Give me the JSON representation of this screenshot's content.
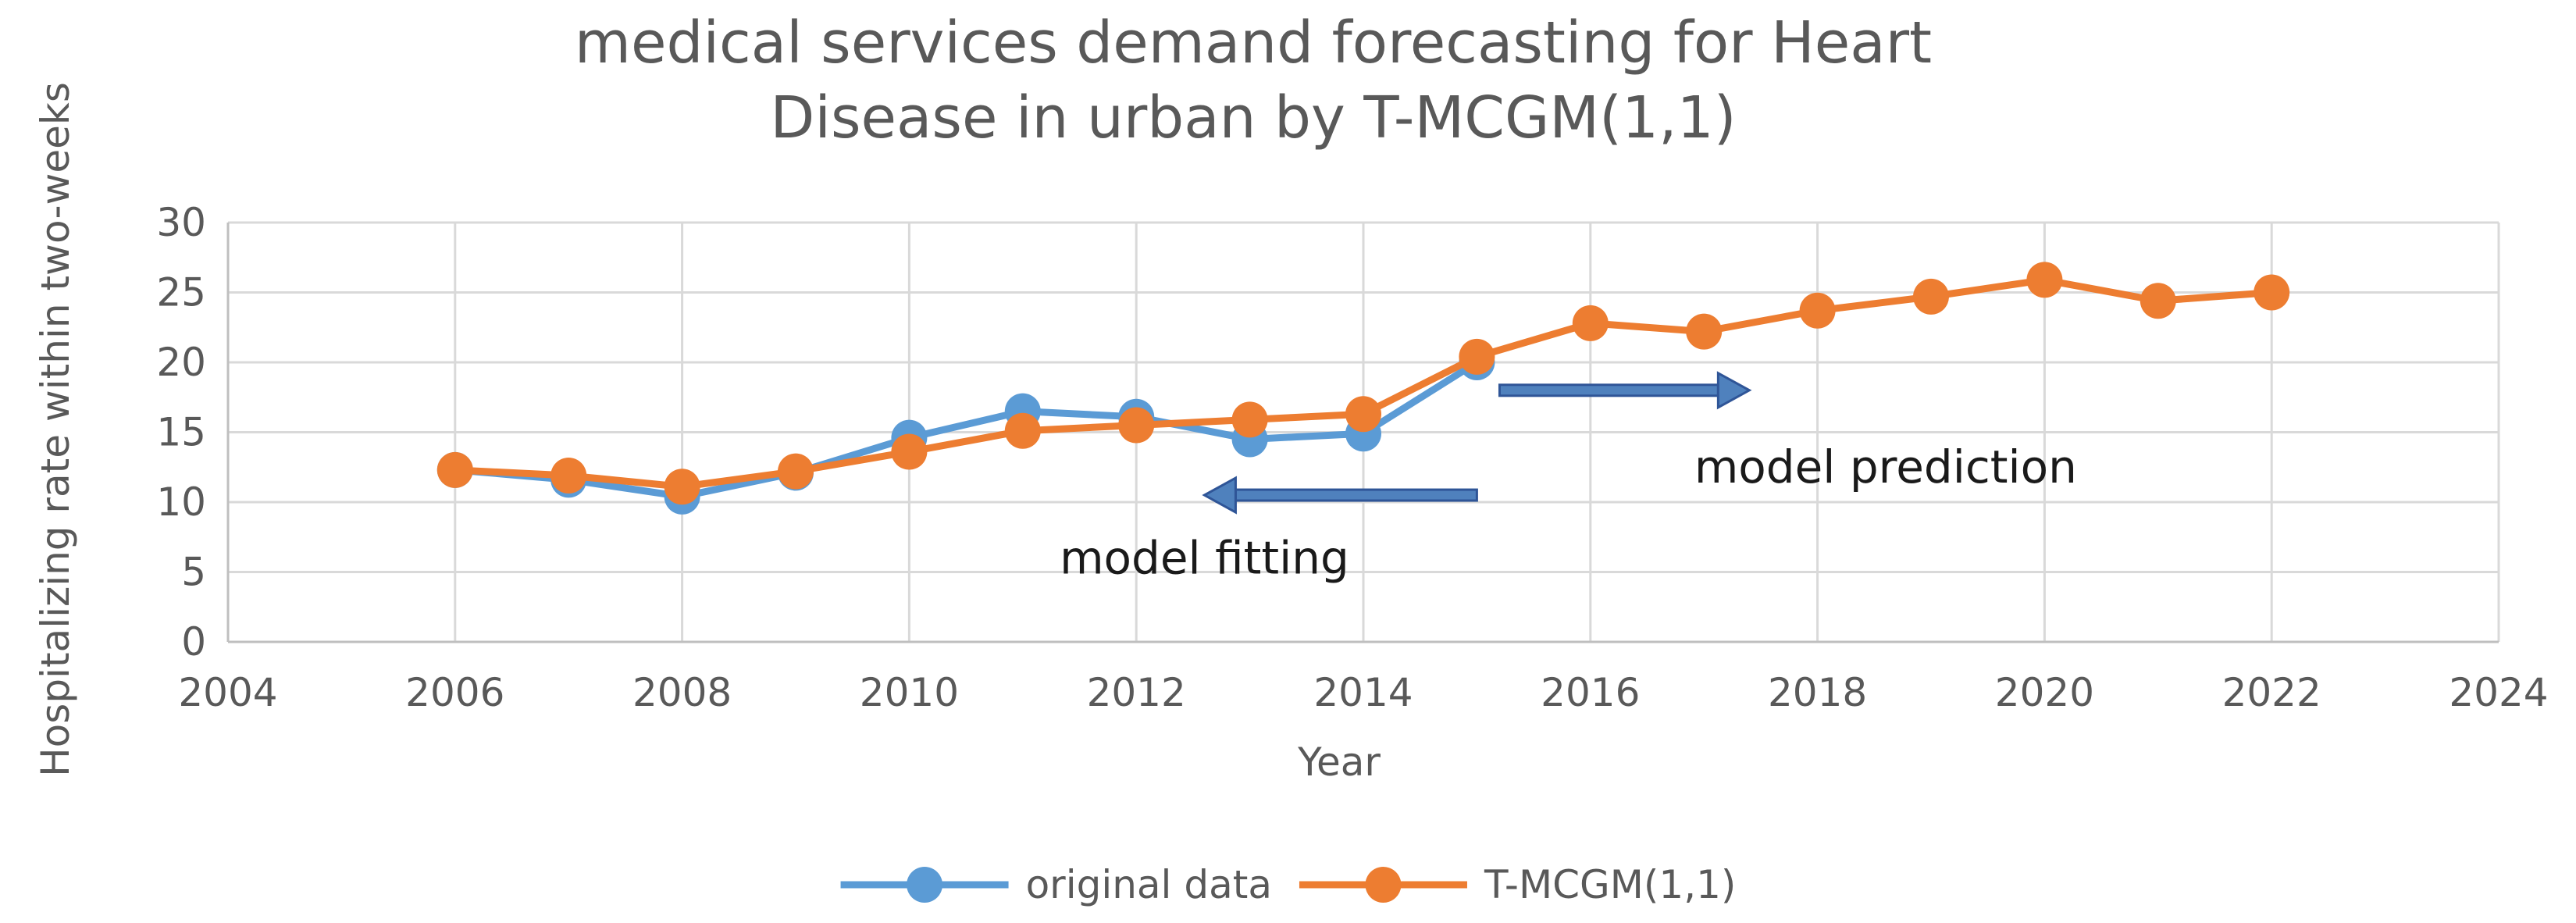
{
  "chart_data": {
    "type": "line",
    "title_lines": [
      "medical services demand forecasting for Heart",
      "Disease in urban by T-MCGM(1,1)"
    ],
    "xlabel": "Year",
    "ylabel": "Hospitalizing rate within two-weeks",
    "xlim": [
      2004,
      2024
    ],
    "ylim": [
      0,
      30
    ],
    "xticks": [
      2004,
      2006,
      2008,
      2010,
      2012,
      2014,
      2016,
      2018,
      2020,
      2022,
      2024
    ],
    "yticks": [
      0,
      5,
      10,
      15,
      20,
      25,
      30
    ],
    "grid": true,
    "legend_position": "bottom",
    "series": [
      {
        "name": "original data",
        "color": "#5b9bd5",
        "x": [
          2006,
          2007,
          2008,
          2009,
          2010,
          2011,
          2012,
          2013,
          2014,
          2015
        ],
        "values": [
          12.3,
          11.6,
          10.4,
          12.1,
          14.6,
          16.5,
          16.1,
          14.5,
          14.9,
          20.0
        ]
      },
      {
        "name": "T-MCGM(1,1)",
        "color": "#ed7d31",
        "x": [
          2006,
          2007,
          2008,
          2009,
          2010,
          2011,
          2012,
          2013,
          2014,
          2015,
          2016,
          2017,
          2018,
          2019,
          2020,
          2021,
          2022
        ],
        "values": [
          12.3,
          11.9,
          11.1,
          12.2,
          13.6,
          15.1,
          15.5,
          15.9,
          16.3,
          20.4,
          22.8,
          22.2,
          23.7,
          24.7,
          25.9,
          24.4,
          25.0
        ]
      }
    ],
    "annotations": [
      {
        "text": "model fitting",
        "arrow": "left",
        "arrow_from_x": 2015.0,
        "arrow_to_x": 2012.6,
        "arrow_y": 10.5,
        "text_x": 2012.6,
        "text_y": 4.9
      },
      {
        "text": "model prediction",
        "arrow": "right",
        "arrow_from_x": 2015.2,
        "arrow_to_x": 2017.4,
        "arrow_y": 18.0,
        "text_x": 2018.6,
        "text_y": 11.4
      }
    ]
  }
}
